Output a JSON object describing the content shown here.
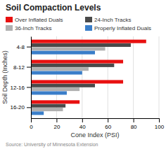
{
  "chart_data": {
    "type": "bar",
    "orientation": "horizontal",
    "title": "Soil Compaction Levels",
    "xlabel": "Cone Index (PSI)",
    "ylabel": "Soil Depth (Inches)",
    "annotations": [
      "Source: University of Minnesota Extension"
    ],
    "categories": [
      "4-8",
      "8-12",
      "12-16",
      "16-20"
    ],
    "series": [
      {
        "name": "Over Inflated Duals",
        "color": "#e81010",
        "values": [
          90,
          72,
          72,
          38
        ]
      },
      {
        "name": "24-Inch Tracks",
        "color": "#4a4a4a",
        "values": [
          78,
          65,
          50,
          27
        ]
      },
      {
        "name": "36-Inch Tracks",
        "color": "#b0b0b0",
        "values": [
          58,
          45,
          38,
          25
        ]
      },
      {
        "name": "Properly Inflated Duals",
        "color": "#3a7ec9",
        "values": [
          50,
          40,
          28,
          10
        ]
      }
    ],
    "xlim": [
      0,
      100
    ],
    "xticks": [
      0,
      20,
      40,
      60,
      80,
      100
    ],
    "grid": true,
    "legend": "top"
  }
}
